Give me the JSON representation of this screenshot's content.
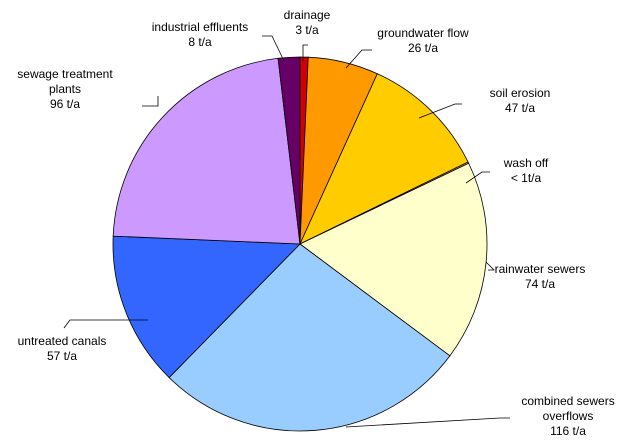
{
  "chart_data": {
    "type": "pie",
    "start": "top",
    "direction": "clockwise",
    "slices": [
      {
        "label_lines": [
          "drainage",
          "3 t/a"
        ],
        "value": 3,
        "color": "#d00000"
      },
      {
        "label_lines": [
          "groundwater flow",
          "26 t/a"
        ],
        "value": 26,
        "color": "#ff9900"
      },
      {
        "label_lines": [
          "soil erosion",
          "47 t/a"
        ],
        "value": 47,
        "color": "#ffcc00"
      },
      {
        "label_lines": [
          "wash off",
          "< 1t/a"
        ],
        "value": 0.5,
        "color": "#ffcc00"
      },
      {
        "label_lines": [
          "rainwater sewers",
          "74 t/a"
        ],
        "value": 74,
        "color": "#ffffcc"
      },
      {
        "label_lines": [
          "combined sewers",
          "overflows",
          "116 t/a"
        ],
        "value": 116,
        "color": "#99ccff"
      },
      {
        "label_lines": [
          "untreated canals",
          "57 t/a"
        ],
        "value": 57,
        "color": "#3366ff"
      },
      {
        "label_lines": [
          "sewage treatment",
          "plants",
          "96 t/a"
        ],
        "value": 96,
        "color": "#cc99ff"
      },
      {
        "label_lines": [
          "industrial effluents",
          "8 t/a"
        ],
        "value": 8,
        "color": "#660066"
      }
    ]
  }
}
